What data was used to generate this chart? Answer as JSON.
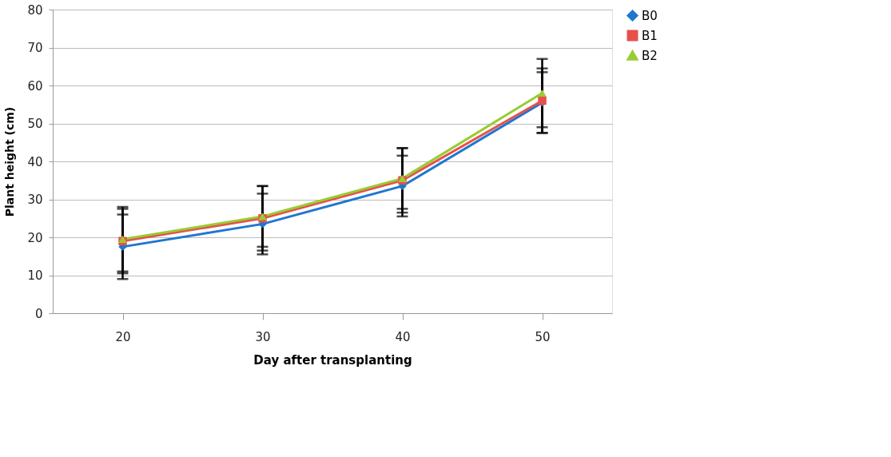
{
  "chart_data": {
    "type": "line",
    "xlabel": "Day after transplanting",
    "ylabel": "Plant height (cm)",
    "categories": [
      "20",
      "30",
      "40",
      "50"
    ],
    "series": [
      {
        "name": "B0",
        "color": "#1f77d0",
        "marker": "diamond",
        "values": [
          17.5,
          23.5,
          33.5,
          55.5
        ],
        "errors": [
          8.5,
          8,
          8,
          8
        ]
      },
      {
        "name": "B1",
        "color": "#e8504a",
        "marker": "square",
        "values": [
          19,
          25,
          35,
          56
        ],
        "errors": [
          8.5,
          8.5,
          8.5,
          8.5
        ]
      },
      {
        "name": "B2",
        "color": "#99cc33",
        "marker": "triangle",
        "values": [
          19.5,
          25.5,
          35.5,
          58
        ],
        "errors": [
          8.5,
          8,
          8,
          9
        ]
      }
    ],
    "ylim": [
      0,
      80
    ],
    "yticks": [
      0,
      10,
      20,
      30,
      40,
      50,
      60,
      70,
      80
    ],
    "grid": "y",
    "legend": "right",
    "line_style": "solid"
  }
}
